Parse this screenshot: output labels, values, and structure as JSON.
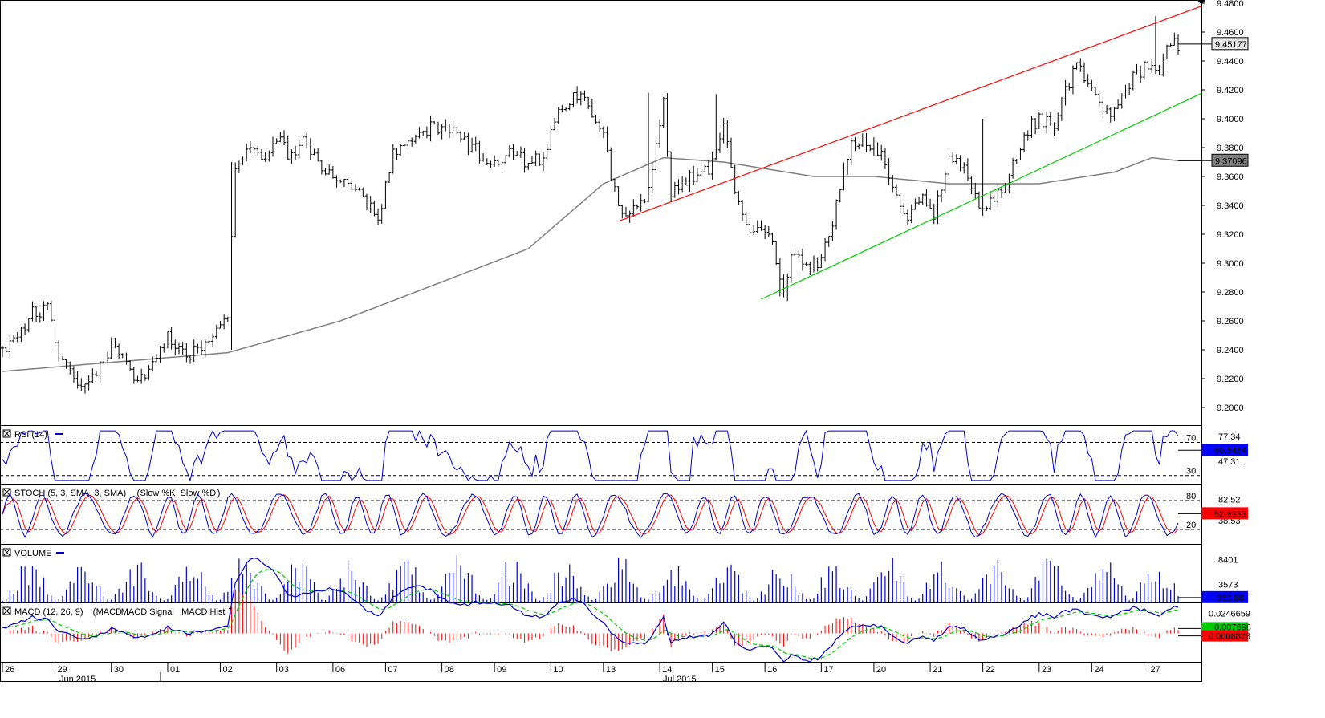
{
  "chart_data": [
    {
      "type": "candlestick",
      "panel": "price",
      "ylim": [
        9.19,
        9.48
      ],
      "ticks": [
        "9.4800",
        "9.4600",
        "9.4400",
        "9.4200",
        "9.4000",
        "9.3800",
        "9.3600",
        "9.3400",
        "9.3200",
        "9.3000",
        "9.2800",
        "9.2600",
        "9.2400",
        "9.2200",
        "9.2000"
      ],
      "last_price": "9.45177",
      "ma_value": "9.37096",
      "waypoints": [
        [
          0,
          9.238
        ],
        [
          8,
          9.265
        ],
        [
          12,
          9.27
        ],
        [
          15,
          9.235
        ],
        [
          22,
          9.212
        ],
        [
          30,
          9.246
        ],
        [
          36,
          9.215
        ],
        [
          44,
          9.25
        ],
        [
          50,
          9.235
        ],
        [
          60,
          9.265
        ],
        [
          62,
          9.365
        ],
        [
          65,
          9.38
        ],
        [
          70,
          9.37
        ],
        [
          74,
          9.39
        ],
        [
          76,
          9.37
        ],
        [
          80,
          9.385
        ],
        [
          84,
          9.37
        ],
        [
          90,
          9.355
        ],
        [
          96,
          9.345
        ],
        [
          100,
          9.33
        ],
        [
          104,
          9.375
        ],
        [
          108,
          9.38
        ],
        [
          114,
          9.395
        ],
        [
          120,
          9.39
        ],
        [
          126,
          9.378
        ],
        [
          130,
          9.37
        ],
        [
          136,
          9.375
        ],
        [
          140,
          9.37
        ],
        [
          144,
          9.372
        ],
        [
          148,
          9.405
        ],
        [
          152,
          9.415
        ],
        [
          156,
          9.41
        ],
        [
          160,
          9.39
        ],
        [
          164,
          9.335
        ],
        [
          168,
          9.34
        ],
        [
          172,
          9.35
        ],
        [
          176,
          9.41
        ],
        [
          178,
          9.35
        ],
        [
          184,
          9.36
        ],
        [
          188,
          9.365
        ],
        [
          192,
          9.395
        ],
        [
          196,
          9.34
        ],
        [
          200,
          9.32
        ],
        [
          204,
          9.325
        ],
        [
          208,
          9.28
        ],
        [
          210,
          9.31
        ],
        [
          214,
          9.3
        ],
        [
          218,
          9.3
        ],
        [
          222,
          9.34
        ],
        [
          226,
          9.385
        ],
        [
          230,
          9.38
        ],
        [
          232,
          9.385
        ],
        [
          236,
          9.36
        ],
        [
          240,
          9.33
        ],
        [
          244,
          9.345
        ],
        [
          248,
          9.335
        ],
        [
          252,
          9.375
        ],
        [
          256,
          9.365
        ],
        [
          260,
          9.34
        ],
        [
          264,
          9.345
        ],
        [
          268,
          9.36
        ],
        [
          272,
          9.39
        ],
        [
          276,
          9.4
        ],
        [
          280,
          9.395
        ],
        [
          284,
          9.425
        ],
        [
          286,
          9.435
        ],
        [
          288,
          9.43
        ],
        [
          292,
          9.41
        ],
        [
          296,
          9.405
        ],
        [
          300,
          9.425
        ],
        [
          304,
          9.435
        ],
        [
          308,
          9.43
        ],
        [
          311,
          9.455
        ],
        [
          313,
          9.452
        ]
      ],
      "ma_points": [
        [
          0,
          9.225
        ],
        [
          60,
          9.238
        ],
        [
          90,
          9.26
        ],
        [
          140,
          9.31
        ],
        [
          160,
          9.355
        ],
        [
          176,
          9.373
        ],
        [
          192,
          9.37
        ],
        [
          216,
          9.36
        ],
        [
          232,
          9.36
        ],
        [
          252,
          9.355
        ],
        [
          276,
          9.355
        ],
        [
          296,
          9.363
        ],
        [
          306,
          9.373
        ],
        [
          313,
          9.371
        ]
      ],
      "trendlines": [
        {
          "color": "#ff0000",
          "points": [
            [
              164,
              9.329
            ],
            [
              313,
              9.472
            ]
          ]
        },
        {
          "color": "#00cc00",
          "points": [
            [
              202,
              9.275
            ],
            [
              313,
              9.41
            ]
          ]
        }
      ]
    },
    {
      "type": "line",
      "panel": "RSI",
      "title": "RSI (14)",
      "levels": [
        "70",
        "30"
      ],
      "ticks": [
        "77.34",
        "47.31"
      ],
      "ylim": [
        20,
        88
      ],
      "last_value": "60.6454",
      "series": [
        {
          "name": "RSI",
          "color": "#0000cc"
        }
      ]
    },
    {
      "type": "line",
      "panel": "STOCH",
      "title": "STOCH (5, 3, SMA, 3, SMA)",
      "legend": [
        "Slow %K",
        "Slow %D"
      ],
      "levels": [
        "80",
        "20"
      ],
      "ticks": [
        "82.52",
        "38.53"
      ],
      "ylim": [
        -10,
        110
      ],
      "last_value": "52.6933",
      "series": [
        {
          "name": "Slow %K",
          "color": "#0000cc"
        },
        {
          "name": "Slow %D",
          "color": "#ff0000"
        }
      ]
    },
    {
      "type": "bar",
      "panel": "VOLUME",
      "title": "VOLUME",
      "ticks": [
        "8401",
        "3573"
      ],
      "ylim": [
        0,
        11000
      ],
      "last_value": "969.88",
      "series": [
        {
          "name": "VOLUME",
          "color": "#0000cc"
        }
      ]
    },
    {
      "type": "line",
      "panel": "MACD",
      "title": "MACD (12, 26, 9)",
      "legend": [
        "MACD",
        "MACD Signal",
        "MACD Hist"
      ],
      "ticks": [
        "0.0246659"
      ],
      "ylim": [
        -0.035,
        0.035
      ],
      "last_values": [
        "0.007698",
        "0.0008828"
      ],
      "series": [
        {
          "name": "MACD",
          "color": "#0000cc"
        },
        {
          "name": "MACD Signal",
          "color": "#00cc00"
        },
        {
          "name": "MACD Hist",
          "color": "#ff0000"
        }
      ]
    }
  ],
  "x_axis": {
    "dates": [
      "26",
      "29",
      "30",
      "01",
      "02",
      "03",
      "06",
      "07",
      "08",
      "09",
      "10",
      "13",
      "14",
      "15",
      "16",
      "17",
      "20",
      "21",
      "22",
      "23",
      "24",
      "27"
    ],
    "months": [
      "Jun 2015",
      "Jul 2015"
    ]
  }
}
